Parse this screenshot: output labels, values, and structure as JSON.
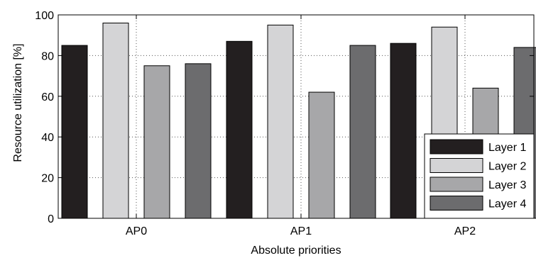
{
  "chart_data": {
    "type": "bar",
    "title": "",
    "xlabel": "Absolute priorities",
    "ylabel": "Resource utilization [%]",
    "categories": [
      "AP0",
      "AP1",
      "AP2"
    ],
    "ylim": [
      0,
      100
    ],
    "yticks": [
      0,
      20,
      40,
      60,
      80,
      100
    ],
    "grid": true,
    "legend_position": "bottom-right",
    "series": [
      {
        "name": "Layer 1",
        "color": "#231f20",
        "values": [
          85,
          87,
          86
        ]
      },
      {
        "name": "Layer 2",
        "color": "#d4d4d6",
        "values": [
          96,
          95,
          94
        ]
      },
      {
        "name": "Layer 3",
        "color": "#a7a7a9",
        "values": [
          75,
          62,
          64
        ]
      },
      {
        "name": "Layer 4",
        "color": "#6c6c6e",
        "values": [
          76,
          85,
          84
        ]
      }
    ]
  }
}
